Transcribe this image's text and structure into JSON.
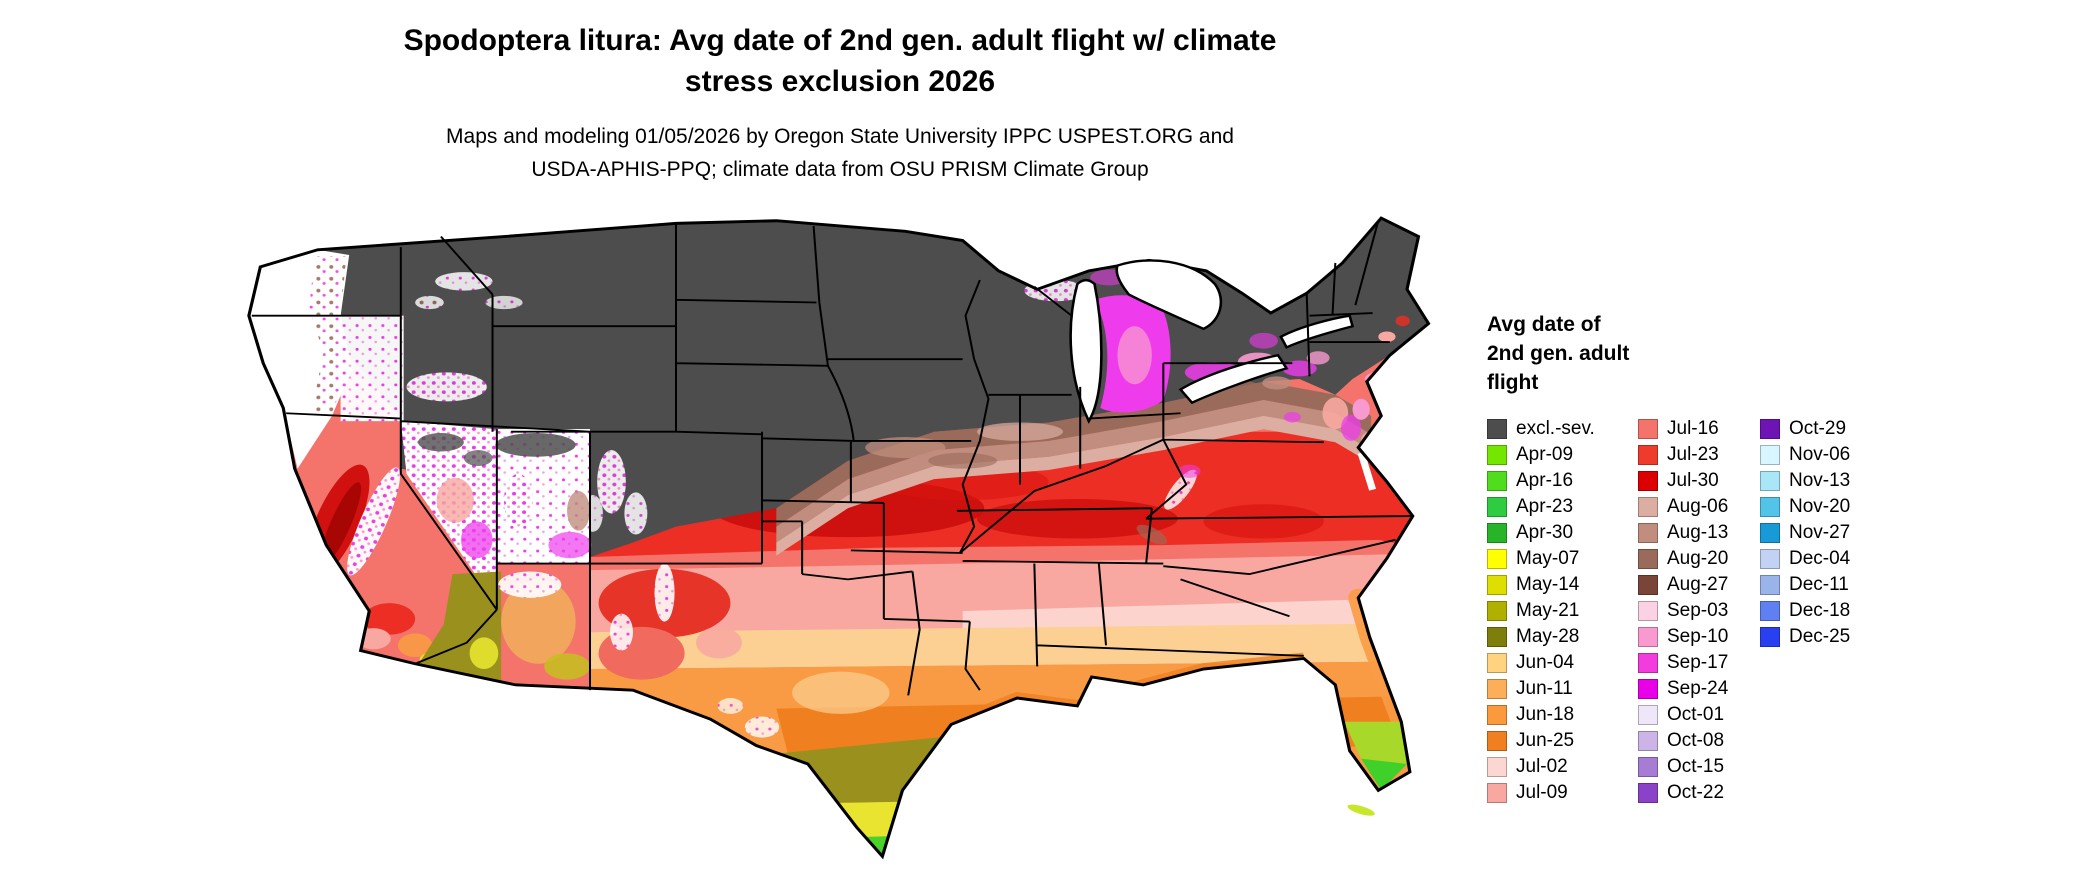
{
  "title": {
    "line1": "Spodoptera litura: Avg date of 2nd gen. adult flight w/ climate",
    "line2": "stress exclusion 2026"
  },
  "subtitle": {
    "line1": "Maps and modeling 01/05/2026 by Oregon State University IPPC USPEST.ORG and",
    "line2": "USDA-APHIS-PPQ; climate data from OSU PRISM Climate Group"
  },
  "map": {
    "area": "Contiguous United States choropleth of average date of 2nd generation adult flight"
  },
  "legend": {
    "title_lines": [
      "Avg date of",
      "2nd gen. adult",
      "flight"
    ],
    "columns": [
      {
        "entries": [
          {
            "label": "excl.-sev.",
            "color": "#4D4D4D"
          },
          {
            "label": "Apr-09",
            "color": "#74E600"
          },
          {
            "label": "Apr-16",
            "color": "#4FDD1E"
          },
          {
            "label": "Apr-23",
            "color": "#2ECC40"
          },
          {
            "label": "Apr-30",
            "color": "#28B428"
          },
          {
            "label": "May-07",
            "color": "#FFFF00"
          },
          {
            "label": "May-14",
            "color": "#DEDE00"
          },
          {
            "label": "May-21",
            "color": "#B0B000"
          },
          {
            "label": "May-28",
            "color": "#7E7E0A"
          },
          {
            "label": "Jun-04",
            "color": "#FFD37F"
          },
          {
            "label": "Jun-11",
            "color": "#FCAF58"
          },
          {
            "label": "Jun-18",
            "color": "#FB9A3C"
          },
          {
            "label": "Jun-25",
            "color": "#F07F1F"
          },
          {
            "label": "Jul-02",
            "color": "#FCD7D2"
          },
          {
            "label": "Jul-09",
            "color": "#F8A8A0"
          }
        ]
      },
      {
        "entries": [
          {
            "label": "Jul-16",
            "color": "#F4736A"
          },
          {
            "label": "Jul-23",
            "color": "#EF3B2C"
          },
          {
            "label": "Jul-30",
            "color": "#DC0000"
          },
          {
            "label": "Aug-06",
            "color": "#DCAEA2"
          },
          {
            "label": "Aug-13",
            "color": "#C08D7E"
          },
          {
            "label": "Aug-20",
            "color": "#9A6B5A"
          },
          {
            "label": "Aug-27",
            "color": "#7A4438"
          },
          {
            "label": "Sep-03",
            "color": "#FAD2E4"
          },
          {
            "label": "Sep-10",
            "color": "#F89AD0"
          },
          {
            "label": "Sep-17",
            "color": "#F23CDE"
          },
          {
            "label": "Sep-24",
            "color": "#E800E8"
          },
          {
            "label": "Oct-01",
            "color": "#F0E6FA"
          },
          {
            "label": "Oct-08",
            "color": "#CDB4E8"
          },
          {
            "label": "Oct-15",
            "color": "#A77CD4"
          },
          {
            "label": "Oct-22",
            "color": "#8B42C8"
          }
        ]
      },
      {
        "entries": [
          {
            "label": "Oct-29",
            "color": "#6F14B4"
          },
          {
            "label": "Nov-06",
            "color": "#D8F6FF"
          },
          {
            "label": "Nov-13",
            "color": "#A9E6F8"
          },
          {
            "label": "Nov-20",
            "color": "#52C4EA"
          },
          {
            "label": "Nov-27",
            "color": "#189AD8"
          },
          {
            "label": "Dec-04",
            "color": "#C2D2F4"
          },
          {
            "label": "Dec-11",
            "color": "#9AB4EA"
          },
          {
            "label": "Dec-18",
            "color": "#5F80F2"
          },
          {
            "label": "Dec-25",
            "color": "#2840F0"
          }
        ]
      }
    ]
  }
}
